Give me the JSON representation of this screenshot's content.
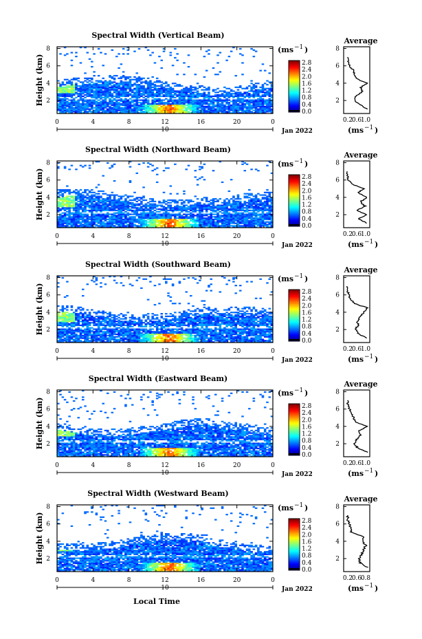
{
  "figure": {
    "xlabel": "Local Time",
    "x_ticks": [
      "0",
      "4",
      "8",
      "12",
      "16",
      "20",
      "0"
    ],
    "day_marker": "10",
    "date_label": "Jan 2022",
    "ylabel": "Height (km)",
    "y_ticks": [
      "2",
      "4",
      "6",
      "8"
    ],
    "colorbar_unit": "(ms",
    "colorbar_unit_exp": "−1",
    "colorbar_ticks": [
      "0.0",
      "0.4",
      "0.8",
      "1.2",
      "1.6",
      "2.0",
      "2.4",
      "2.8"
    ],
    "profile_title": "Average",
    "profile_y_ticks": [
      "2",
      "4",
      "6",
      "8"
    ],
    "profile_unit": "(ms",
    "profile_unit_exp": "−1"
  },
  "chart_data": [
    {
      "type": "heatmap",
      "title": "Spectral Width (Vertical Beam)",
      "xlabel": "Local Time",
      "ylabel": "Height (km)",
      "xlim": [
        0,
        24
      ],
      "ylim": [
        0.5,
        8.2
      ],
      "clim": [
        0.0,
        2.8
      ],
      "profile": {
        "xlim": [
          0.0,
          1.1
        ],
        "xticks": [
          "0.2",
          "0.6",
          "1.0"
        ],
        "heights": [
          1.0,
          1.5,
          2.0,
          2.5,
          3.0,
          3.5,
          4.0,
          4.5,
          5.0,
          5.5,
          6.0,
          6.5,
          7.0
        ],
        "values": [
          0.98,
          0.72,
          0.45,
          0.52,
          0.78,
          0.72,
          0.98,
          0.55,
          0.45,
          0.4,
          0.25,
          0.18,
          0.16
        ]
      }
    },
    {
      "type": "heatmap",
      "title": "Spectral Width (Northward Beam)",
      "xlabel": "Local Time",
      "ylabel": "Height (km)",
      "xlim": [
        0,
        24
      ],
      "ylim": [
        0.5,
        8.2
      ],
      "clim": [
        0.0,
        2.8
      ],
      "profile": {
        "xlim": [
          0.0,
          1.1
        ],
        "xticks": [
          "0.2",
          "0.6",
          "1.0"
        ],
        "heights": [
          1.0,
          1.5,
          2.0,
          2.5,
          3.0,
          3.5,
          4.0,
          4.5,
          5.0,
          5.5,
          6.0,
          6.5,
          7.0
        ],
        "values": [
          1.0,
          0.62,
          0.95,
          0.55,
          0.9,
          0.7,
          1.0,
          0.6,
          0.85,
          0.35,
          0.2,
          0.15,
          0.14
        ]
      }
    },
    {
      "type": "heatmap",
      "title": "Spectral Width (Southward Beam)",
      "xlabel": "Local Time",
      "ylabel": "Height (km)",
      "xlim": [
        0,
        24
      ],
      "ylim": [
        0.5,
        8.2
      ],
      "clim": [
        0.0,
        2.8
      ],
      "profile": {
        "xlim": [
          0.0,
          1.1
        ],
        "xticks": [
          "0.2",
          "0.6",
          "1.0"
        ],
        "heights": [
          1.0,
          1.5,
          2.0,
          2.5,
          3.0,
          3.5,
          4.0,
          4.5,
          5.0,
          5.5,
          6.0,
          6.5,
          7.0
        ],
        "values": [
          0.98,
          0.62,
          0.5,
          0.6,
          0.58,
          0.7,
          0.85,
          1.0,
          0.45,
          0.3,
          0.22,
          0.16,
          0.15
        ]
      }
    },
    {
      "type": "heatmap",
      "title": "Spectral Width (Eastward Beam)",
      "xlabel": "Local Time",
      "ylabel": "Height (km)",
      "xlim": [
        0,
        24
      ],
      "ylim": [
        0.5,
        8.2
      ],
      "clim": [
        0.0,
        2.8
      ],
      "profile": {
        "xlim": [
          0.0,
          1.1
        ],
        "xticks": [
          "0.2",
          "0.6",
          "1.0"
        ],
        "heights": [
          1.0,
          1.5,
          2.0,
          2.5,
          3.0,
          3.5,
          4.0,
          4.5,
          5.0,
          5.5,
          6.0,
          6.5,
          7.0
        ],
        "values": [
          1.0,
          0.6,
          0.45,
          0.55,
          0.72,
          0.65,
          0.98,
          0.5,
          0.42,
          0.35,
          0.25,
          0.18,
          0.16
        ]
      }
    },
    {
      "type": "heatmap",
      "title": "Spectral Width (Westward Beam)",
      "xlabel": "Local Time",
      "ylabel": "Height (km)",
      "xlim": [
        0,
        24
      ],
      "ylim": [
        0.5,
        8.2
      ],
      "clim": [
        0.0,
        2.8
      ],
      "profile": {
        "xlim": [
          0.0,
          0.95
        ],
        "xticks": [
          "0.2",
          "0.6",
          "0.8"
        ],
        "heights": [
          1.0,
          1.5,
          2.0,
          2.5,
          3.0,
          3.5,
          4.0,
          4.5,
          5.0,
          5.5,
          6.0,
          6.5,
          7.0
        ],
        "values": [
          0.85,
          0.6,
          0.55,
          0.65,
          0.72,
          0.8,
          0.7,
          0.75,
          0.28,
          0.25,
          0.2,
          0.15,
          0.14
        ]
      }
    }
  ]
}
